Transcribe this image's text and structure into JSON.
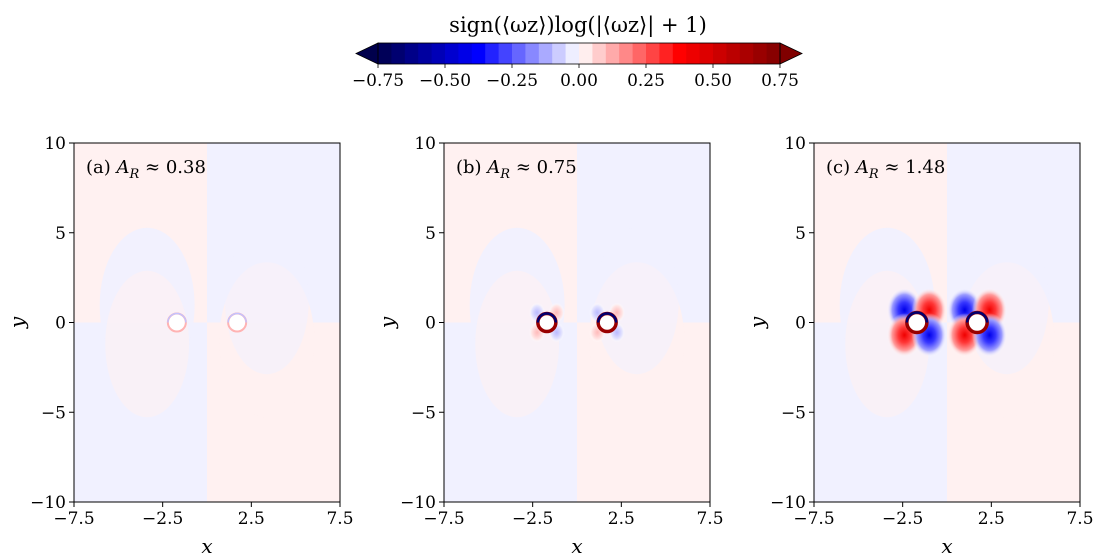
{
  "colorbar": {
    "title": "sign(⟨ω_z⟩)log(|⟨ω_z⟩| + 1)",
    "title_display": "sign(⟨ωz⟩)log(|⟨ωz⟩| + 1)",
    "colormap": "seismic",
    "range": [
      -0.75,
      0.75
    ],
    "extend": "both",
    "ticks": [
      "−0.75",
      "−0.50",
      "−0.25",
      "0.00",
      "0.25",
      "0.50",
      "0.75"
    ],
    "tick_values": [
      -0.75,
      -0.5,
      -0.25,
      0.0,
      0.25,
      0.5,
      0.75
    ]
  },
  "chart_data": [
    {
      "type": "heatmap",
      "panel_label": "(a) ",
      "annotation_value": "0.38",
      "A_R": 0.38,
      "xlabel": "x",
      "ylabel": "y",
      "xlim": [
        -7.5,
        7.5
      ],
      "ylim": [
        -10,
        10
      ],
      "xticks": [
        "−7.5",
        "−2.5",
        "2.5",
        "7.5"
      ],
      "yticks": [
        "10",
        "5",
        "0",
        "−5",
        "−10"
      ],
      "cylinders": [
        {
          "x": -1.7,
          "y": 0
        },
        {
          "x": 1.7,
          "y": 0
        }
      ],
      "field": "mean vorticity, weak background quadrant pattern (|value| ≈ 0.02), vortex lobes barely visible"
    },
    {
      "type": "heatmap",
      "panel_label": "(b) ",
      "annotation_value": "0.75",
      "A_R": 0.75,
      "xlabel": "x",
      "ylabel": "y",
      "xlim": [
        -7.5,
        7.5
      ],
      "ylim": [
        -10,
        10
      ],
      "xticks": [
        "−7.5",
        "−2.5",
        "2.5",
        "7.5"
      ],
      "yticks": [
        "10",
        "5",
        "0",
        "−5",
        "−10"
      ],
      "cylinders": [
        {
          "x": -1.7,
          "y": 0
        },
        {
          "x": 1.7,
          "y": 0
        }
      ],
      "field": "mean vorticity, weak background quadrant pattern plus small vortex lobes (|value| ≈ 0.1) around each cylinder"
    },
    {
      "type": "heatmap",
      "panel_label": "(c) ",
      "annotation_value": "1.48",
      "A_R": 1.48,
      "xlabel": "x",
      "ylabel": "y",
      "xlim": [
        -7.5,
        7.5
      ],
      "ylim": [
        -10,
        10
      ],
      "xticks": [
        "−7.5",
        "−2.5",
        "2.5",
        "7.5"
      ],
      "yticks": [
        "10",
        "5",
        "0",
        "−5",
        "−10"
      ],
      "cylinders": [
        {
          "x": -1.7,
          "y": 0
        },
        {
          "x": 1.7,
          "y": 0
        }
      ],
      "field": "mean vorticity, weak background quadrant pattern plus strong four-lobe vortex pattern (|value| ≈ 0.4) around each cylinder"
    }
  ]
}
